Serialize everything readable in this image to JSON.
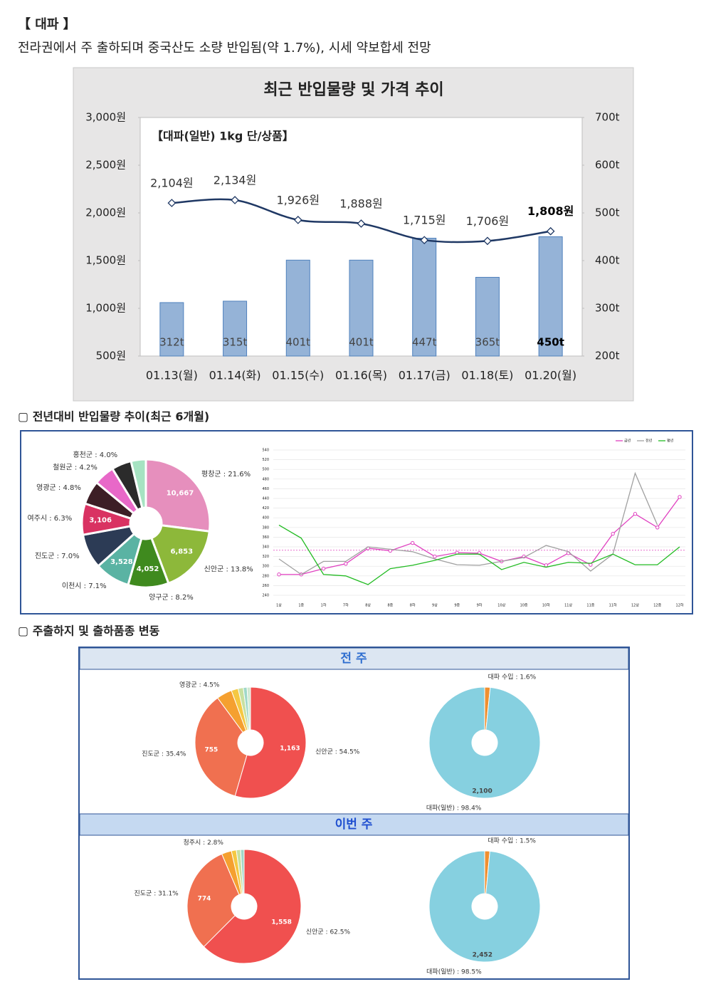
{
  "header": {
    "title": "【 대파 】",
    "subtitle": "전라권에서 주 출하되며 중국산도 소량 반입됨(약 1.7%), 시세 약보합세 전망"
  },
  "sections": [
    "▢  전년대비 반입물량 추이(최근 6개월)",
    "▢  주출하지 및 출하품종 변동"
  ],
  "panels": [
    "전 주",
    "이번 주"
  ],
  "chart_data": [
    {
      "type": "combo",
      "title": "최근 반입물량 및 가격 추이",
      "annotation": "【대파(일반)  1kg 단/상품】",
      "categories": [
        "01.13(월)",
        "01.14(화)",
        "01.15(수)",
        "01.16(목)",
        "01.17(금)",
        "01.18(토)",
        "01.20(월)"
      ],
      "series": [
        {
          "type": "bar",
          "axis": "y2",
          "color": "#95b3d7",
          "values": [
            312,
            315,
            401,
            401,
            447,
            365,
            450
          ],
          "value_labels": [
            "312t",
            "315t",
            "401t",
            "401t",
            "447t",
            "365t",
            "450t"
          ]
        },
        {
          "type": "line",
          "color": "#1f3864",
          "values": [
            2104,
            2134,
            1926,
            1888,
            1715,
            1706,
            1808
          ],
          "value_labels": [
            "2,104원",
            "2,134원",
            "1,926원",
            "1,888원",
            "1,715원",
            "1,706원",
            "1,808원"
          ]
        }
      ],
      "emphasis_index": 6,
      "ylim": [
        500,
        3000
      ],
      "yticks": [
        {
          "value": 500,
          "label": "500원"
        },
        {
          "value": 1000,
          "label": "1,000원"
        },
        {
          "value": 1500,
          "label": "1,500원"
        },
        {
          "value": 2000,
          "label": "2,000원"
        },
        {
          "value": 2500,
          "label": "2,500원"
        },
        {
          "value": 3000,
          "label": "3,000원"
        }
      ],
      "y2lim": [
        200,
        700
      ],
      "y2ticks": [
        {
          "value": 200,
          "label": "200t"
        },
        {
          "value": 300,
          "label": "300t"
        },
        {
          "value": 400,
          "label": "400t"
        },
        {
          "value": 500,
          "label": "500t"
        },
        {
          "value": 600,
          "label": "600t"
        },
        {
          "value": 700,
          "label": "700t"
        }
      ]
    },
    {
      "type": "pie",
      "donut": true,
      "labels": [
        "평창군 : 21.6%",
        "신안군 : 13.8%",
        "양구군 : 8.2%",
        "이천시 : 7.1%",
        "진도군 : 7.0%",
        "여주시 : 6.3%",
        "영광군 : 4.8%",
        "철원군 : 4.2%",
        "홍천군 : 4.0%",
        null
      ],
      "values": [
        21.6,
        13.8,
        8.2,
        7.1,
        7.0,
        6.3,
        4.8,
        4.2,
        4.0,
        3.0
      ],
      "amount_labels": [
        "10,667",
        "6,853",
        "4,052",
        "3,528",
        null,
        "3,106",
        null,
        null,
        null,
        null
      ],
      "colors": [
        "#e68fbd",
        "#8db83a",
        "#3f8a1e",
        "#5ab3a3",
        "#2c3b55",
        "#d93262",
        "#3d1e26",
        "#e868c8",
        "#2b2b2b",
        "#a6e3c2"
      ]
    },
    {
      "type": "line",
      "categories": [
        "1상",
        "1중",
        "1하",
        "7하",
        "8상",
        "8중",
        "8하",
        "9상",
        "9중",
        "9하",
        "10상",
        "10중",
        "10하",
        "11상",
        "11중",
        "11하",
        "12상",
        "12중",
        "12하"
      ],
      "series": [
        {
          "name": "금년",
          "color": "#e040c0",
          "marker": true,
          "values": [
            283,
            283,
            295,
            305,
            337,
            332,
            348,
            320,
            328,
            327,
            310,
            320,
            302,
            327,
            303,
            367,
            408,
            380,
            443
          ]
        },
        {
          "name": "전년",
          "color": "#a0a0a0",
          "values": [
            315,
            283,
            310,
            310,
            340,
            335,
            330,
            315,
            303,
            302,
            310,
            318,
            343,
            330,
            290,
            325,
            492,
            385,
            null
          ]
        },
        {
          "name": "평년",
          "color": "#22bb22",
          "values": [
            385,
            358,
            283,
            280,
            262,
            295,
            302,
            312,
            325,
            325,
            293,
            308,
            298,
            308,
            306,
            325,
            303,
            303,
            340
          ]
        }
      ],
      "reference_line": 333,
      "ylim": [
        240,
        540
      ],
      "yticks": [
        240,
        260,
        280,
        300,
        320,
        340,
        360,
        380,
        400,
        420,
        440,
        460,
        480,
        500,
        520,
        540
      ],
      "grid": true,
      "legend": "top-right"
    },
    {
      "type": "pie",
      "labels": [
        "신안군 : 54.5%",
        "진도군 : 35.4%",
        "영광군 : 4.5%",
        null,
        null,
        null,
        null
      ],
      "values": [
        54.5,
        35.4,
        4.5,
        2.0,
        1.5,
        1.1,
        1.0
      ],
      "amount_labels": [
        "1,163",
        "755",
        null,
        null,
        null,
        null,
        null
      ],
      "colors": [
        "#f0504f",
        "#f07050",
        "#f5a030",
        "#f5c842",
        "#c8e0a0",
        "#a0d8c8",
        "#d0e8d0"
      ]
    },
    {
      "type": "pie",
      "labels": [
        "대파 수입 : 1.6%",
        "대파(일반) : 98.4%"
      ],
      "values": [
        1.6,
        98.4
      ],
      "amount_labels": [
        null,
        "2,100"
      ],
      "colors": [
        "#f09030",
        "#86d0e0"
      ]
    },
    {
      "type": "pie",
      "labels": [
        "신안군 : 62.5%",
        "진도군 : 31.1%",
        "청주시 : 2.8%",
        null,
        null,
        null
      ],
      "values": [
        62.5,
        31.1,
        2.8,
        1.4,
        1.2,
        1.0
      ],
      "amount_labels": [
        "1,558",
        "774",
        null,
        null,
        null,
        null
      ],
      "colors": [
        "#f0504f",
        "#f07050",
        "#f5a030",
        "#f5c842",
        "#c8e0a0",
        "#a0d8c8"
      ]
    },
    {
      "type": "pie",
      "labels": [
        "대파 수입 : 1.5%",
        "대파(일반) : 98.5%"
      ],
      "values": [
        1.5,
        98.5
      ],
      "amount_labels": [
        null,
        "2,452"
      ],
      "colors": [
        "#f09030",
        "#86d0e0"
      ]
    }
  ]
}
